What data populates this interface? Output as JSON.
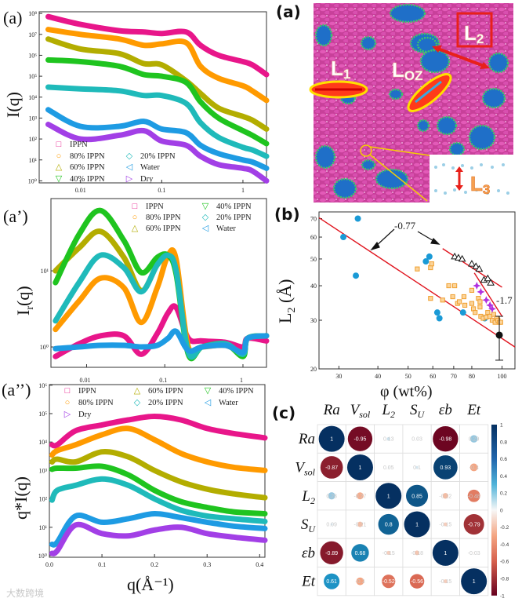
{
  "panels": {
    "a_left": "(a)",
    "a_prime": "(a’)",
    "a_dprime": "(a’’)",
    "a_right": "(a)",
    "b": "(b)",
    "c": "(c)"
  },
  "simulation": {
    "labels": {
      "L1": "L",
      "L1_sub": "1",
      "LOZ": "L",
      "LOZ_sub": "OZ",
      "L2": "L",
      "L2_sub": "2",
      "L3": "L",
      "L3_sub": "3"
    }
  },
  "watermark": "大数跨境",
  "colors": {
    "IPPN": "#e8168a",
    "80% IPPN": "#ff9a00",
    "60% IPPN": "#b3ad00",
    "40% IPPN": "#1fc41f",
    "20% IPPN": "#1fbaba",
    "Water": "#1e9be3",
    "Dry": "#a23fe6",
    "fit_red": "#e0141e",
    "blue_points": "#1a9ad6",
    "orange_points": "#f0a030",
    "purple_points": "#b030e0"
  },
  "chart_data": [
    {
      "type": "line",
      "title": "",
      "xlabel": "",
      "ylabel": "I(q)",
      "xscale": "log",
      "yscale": "log",
      "xlim": [
        0.0031,
        1.95
      ],
      "ylim": [
        0.8,
        120000000.0
      ],
      "xticks": [
        0.01,
        0.1,
        1
      ],
      "xtick_labels": [
        "0.01",
        "0.1",
        "1"
      ],
      "yticks": [
        1,
        10,
        100,
        1000,
        10000,
        100000,
        1000000,
        10000000,
        100000000
      ],
      "ytick_labels": [
        "10⁰",
        "10¹",
        "10²",
        "10³",
        "10⁴",
        "10⁵",
        "10⁶",
        "10⁷",
        "10⁸"
      ],
      "legend": "bottom-left",
      "x": [
        0.004,
        0.01,
        0.03,
        0.06,
        0.1,
        0.2,
        0.3,
        0.5,
        1,
        1.3,
        1.95
      ],
      "series": [
        {
          "name": "IPPN",
          "marker": "□",
          "values": [
            70000000.0,
            30000000.0,
            15000000.0,
            13000000.0,
            11000000.0,
            13000000.0,
            3000000.0,
            1000000.0,
            500000.0,
            350000.0,
            120000.0
          ]
        },
        {
          "name": "80% IPPN",
          "marker": "○",
          "values": [
            17000000.0,
            10000000.0,
            6000000.0,
            3000000.0,
            3500000.0,
            4000000.0,
            300000.0,
            80000.0,
            35000.0,
            20000.0,
            7000.0
          ]
        },
        {
          "name": "60% IPPN",
          "marker": "△",
          "values": [
            6000000.0,
            2000000.0,
            1200000.0,
            400000.0,
            350000.0,
            60000.0,
            15000.0,
            3000.0,
            1200.0,
            800.0,
            300.0
          ]
        },
        {
          "name": "40% IPPN",
          "marker": "▽",
          "values": [
            600000.0,
            500000.0,
            300000.0,
            120000.0,
            100000.0,
            50000.0,
            6000.0,
            1000.0,
            250,
            150,
            60
          ]
        },
        {
          "name": "20% IPPN",
          "marker": "◇",
          "values": [
            30000.0,
            25000.0,
            20000.0,
            12000.0,
            12000.0,
            5000.0,
            600,
            120,
            40,
            30,
            15
          ]
        },
        {
          "name": "Water",
          "marker": "◁",
          "values": [
            2500,
            400,
            400,
            700,
            300,
            200,
            50,
            20,
            10,
            8,
            4
          ]
        },
        {
          "name": "Dry",
          "marker": "▷",
          "values": [
            500,
            100,
            150,
            250,
            80,
            50,
            15,
            6,
            4,
            3,
            1
          ]
        }
      ]
    },
    {
      "type": "line",
      "title": "",
      "xlabel": "",
      "ylabel": "Ir(q)",
      "ylabel_base": "I",
      "ylabel_sub": "r",
      "ylabel_tail": "(q)",
      "xscale": "log",
      "yscale": "log",
      "xlim": [
        0.0035,
        2.0
      ],
      "ylim": [
        0.54,
        89
      ],
      "xticks": [
        0.01,
        0.1,
        1
      ],
      "xtick_labels": [
        "0.01",
        "0.1",
        "1"
      ],
      "yticks": [
        1,
        10
      ],
      "ytick_labels": [
        "10⁰",
        "10¹"
      ],
      "legend": "top-right",
      "x": [
        0.004,
        0.008,
        0.015,
        0.03,
        0.05,
        0.08,
        0.11,
        0.14,
        0.2,
        0.3,
        0.6,
        1,
        1.15,
        2
      ],
      "series": [
        {
          "name": "IPPN",
          "marker": "□",
          "values": [
            0.75,
            1.1,
            1.4,
            1.4,
            0.8,
            1.5,
            2.8,
            3.3,
            1.3,
            1.2,
            1.15,
            1.0,
            1.3,
            1.2
          ]
        },
        {
          "name": "80% IPPN",
          "marker": "○",
          "values": [
            1.7,
            4,
            8,
            6,
            2.1,
            6,
            16,
            14,
            1.0,
            1.0,
            1.05,
            0.85,
            1.3,
            1.4
          ]
        },
        {
          "name": "60% IPPN",
          "marker": "△",
          "values": [
            10,
            20,
            33,
            15,
            5.5,
            12,
            16,
            10,
            0.9,
            1.0,
            1.1,
            0.8,
            1.3,
            1.4
          ]
        },
        {
          "name": "40% IPPN",
          "marker": "▽",
          "values": [
            7,
            30,
            62,
            25,
            9.5,
            15,
            16,
            9,
            0.8,
            1.0,
            1.1,
            0.75,
            1.3,
            1.4
          ]
        },
        {
          "name": "20% IPPN",
          "marker": "◇",
          "values": [
            2.2,
            7,
            16,
            11,
            5.3,
            12,
            16,
            10,
            0.85,
            1.0,
            1.1,
            0.8,
            1.3,
            1.4
          ]
        },
        {
          "name": "Water",
          "marker": "◁",
          "values": [
            0.95,
            1.0,
            1.05,
            1.05,
            1.0,
            1.05,
            1.3,
            1.6,
            0.9,
            1.0,
            1.05,
            0.85,
            1.3,
            1.4
          ]
        }
      ]
    },
    {
      "type": "line",
      "title": "",
      "xlabel": "q(Å⁻¹)",
      "ylabel": "q*I(q)",
      "xscale": "linear",
      "yscale": "log",
      "xlim": [
        0,
        0.41
      ],
      "ylim": [
        0.88,
        1050000.0
      ],
      "xticks": [
        0,
        0.1,
        0.2,
        0.3,
        0.4
      ],
      "xtick_labels": [
        "0.0",
        "0.1",
        "0.2",
        "0.3",
        "0.4"
      ],
      "yticks": [
        1,
        10,
        100,
        1000,
        10000,
        100000,
        1000000
      ],
      "ytick_labels": [
        "10⁰",
        "10¹",
        "10²",
        "10³",
        "10⁴",
        "10⁵",
        "10⁶"
      ],
      "legend": "top",
      "x": [
        0.005,
        0.015,
        0.05,
        0.1,
        0.15,
        0.2,
        0.25,
        0.3,
        0.35,
        0.41
      ],
      "series": [
        {
          "name": "IPPN",
          "marker": "□",
          "values": [
            8000.0,
            8000.0,
            25000.0,
            40000.0,
            60000.0,
            80000.0,
            60000.0,
            30000.0,
            20000.0,
            14000.0
          ]
        },
        {
          "name": "80% IPPN",
          "marker": "○",
          "values": [
            3500.0,
            5000.0,
            8000.0,
            18000.0,
            30000.0,
            12000.0,
            4000.0,
            2000.0,
            1300.0,
            1000.0
          ]
        },
        {
          "name": "60% IPPN",
          "marker": "△",
          "values": [
            2000.0,
            2500.0,
            2000.0,
            4500.0,
            3000.0,
            1000.0,
            400,
            220,
            150,
            110
          ]
        },
        {
          "name": "40% IPPN",
          "marker": "▽",
          "values": [
            1100.0,
            1200.0,
            1200.0,
            1400.0,
            700,
            200,
            80,
            50,
            35,
            30
          ]
        },
        {
          "name": "20% IPPN",
          "marker": "◇",
          "values": [
            90,
            200,
            300,
            500,
            300,
            100,
            40,
            25,
            20,
            16
          ]
        },
        {
          "name": "Water",
          "marker": "◁",
          "values": [
            2.5,
            3,
            25,
            15,
            20,
            30,
            22,
            15,
            11,
            9
          ]
        },
        {
          "name": "Dry",
          "marker": "▷",
          "values": [
            1.2,
            1.5,
            12,
            6,
            5,
            8,
            10,
            6,
            4.5,
            3.5
          ]
        }
      ]
    },
    {
      "type": "scatter",
      "title": "",
      "xlabel": "φ (wt%)",
      "ylabel": "L2 (Å)",
      "ylabel_base": "L",
      "ylabel_sub": "2",
      "ylabel_tail": " (Å)",
      "xscale": "log",
      "yscale": "log",
      "xlim": [
        25.9,
        110
      ],
      "ylim": [
        20,
        74
      ],
      "xticks": [
        30,
        40,
        50,
        60,
        70,
        80,
        100
      ],
      "xtick_labels": [
        "30",
        "40",
        "50",
        "60",
        "70",
        "80",
        "100"
      ],
      "yticks": [
        20,
        30,
        40,
        50,
        60,
        70
      ],
      "ytick_labels": [
        "20",
        "30",
        "40",
        "50",
        "60",
        "70"
      ],
      "series": [
        {
          "name": "blue circles",
          "marker": "circle",
          "points": [
            [
              31,
              60
            ],
            [
              34.5,
              70
            ],
            [
              34,
              43.5
            ],
            [
              57,
              49
            ],
            [
              58.5,
              51
            ],
            [
              62,
              32
            ],
            [
              63,
              30.5
            ],
            [
              75,
              32
            ],
            [
              88,
              30.5
            ]
          ]
        },
        {
          "name": "orange squares",
          "marker": "square",
          "points": [
            [
              53.5,
              46
            ],
            [
              59,
              36
            ],
            [
              59,
              46.5
            ],
            [
              59.5,
              48
            ],
            [
              64.5,
              35.5
            ],
            [
              67.5,
              40
            ],
            [
              69.5,
              36.5
            ],
            [
              70.5,
              40
            ],
            [
              72,
              34.5
            ],
            [
              73,
              35
            ],
            [
              75.5,
              36.5
            ],
            [
              76,
              34
            ],
            [
              80,
              38.5
            ],
            [
              80,
              34.5
            ],
            [
              81,
              33
            ],
            [
              82,
              32
            ],
            [
              84,
              36
            ],
            [
              85,
              35
            ],
            [
              85,
              33.5
            ],
            [
              85.5,
              31
            ],
            [
              87,
              30.5
            ],
            [
              89,
              30.8
            ],
            [
              90,
              32
            ],
            [
              91.5,
              31
            ],
            [
              93,
              30
            ],
            [
              94,
              31.5
            ],
            [
              95,
              29.5
            ],
            [
              96,
              30.5
            ],
            [
              97,
              30
            ],
            [
              98,
              29.5
            ],
            [
              99,
              29.5
            ]
          ]
        },
        {
          "name": "black triangles",
          "marker": "triangle",
          "points": [
            [
              70.5,
              51
            ],
            [
              72.5,
              50.5
            ],
            [
              74.5,
              50
            ],
            [
              80,
              48
            ],
            [
              82.5,
              47
            ],
            [
              84.5,
              46
            ],
            [
              87.5,
              42
            ],
            [
              90,
              42.5
            ],
            [
              92,
              41
            ]
          ]
        },
        {
          "name": "purple stars",
          "marker": "star",
          "points": [
            [
              83,
              40
            ],
            [
              85.5,
              38
            ],
            [
              89,
              35.5
            ],
            [
              91.5,
              34
            ],
            [
              93,
              33
            ]
          ]
        },
        {
          "name": "black point",
          "marker": "filled-circle",
          "points": [
            [
              98,
              26.5
            ]
          ],
          "error": [
            21.5,
            31
          ]
        }
      ],
      "fit_lines": [
        {
          "slope_label": "-0.77",
          "from": [
            25.9,
            70.5
          ],
          "to": [
            110,
            24
          ]
        },
        {
          "slope_label": "-0.77",
          "from": [
            64.5,
            54.5
          ],
          "to": [
            100,
            39.5
          ]
        },
        {
          "slope_label": "-1.7",
          "from": [
            81.5,
            44.5
          ],
          "to": [
            100,
            31
          ]
        }
      ],
      "annotations": {
        "slope1": "-0.77",
        "slope2": "-1.7"
      }
    },
    {
      "type": "heatmap",
      "title": "",
      "labels": [
        {
          "base": "Ra",
          "sub": ""
        },
        {
          "base": "V",
          "sub": "sol"
        },
        {
          "base": "L",
          "sub": "2"
        },
        {
          "base": "S",
          "sub": "U"
        },
        {
          "base": "εb",
          "sub": ""
        },
        {
          "base": "Et",
          "sub": ""
        }
      ],
      "values": [
        [
          1,
          -0.95,
          0.13,
          0.03,
          -0.98,
          0.29
        ],
        [
          -0.87,
          1,
          0.05,
          0.1,
          0.93,
          -0.3
        ],
        [
          0.28,
          -0.27,
          1,
          0.85,
          -0.22,
          -0.48
        ],
        [
          0.09,
          -0.21,
          0.8,
          1,
          -0.15,
          -0.79
        ],
        [
          -0.89,
          0.68,
          -0.15,
          -0.18,
          1,
          -0.03
        ],
        [
          0.61,
          -0.3,
          -0.52,
          -0.56,
          -0.15,
          1
        ]
      ],
      "colorbar": {
        "range": [
          -1,
          1
        ],
        "ticks": [
          "1",
          "0.8",
          "0.6",
          "0.4",
          "0.2",
          "0",
          "-0.2",
          "-0.4",
          "-0.6",
          "-0.8",
          "-1"
        ]
      }
    }
  ]
}
